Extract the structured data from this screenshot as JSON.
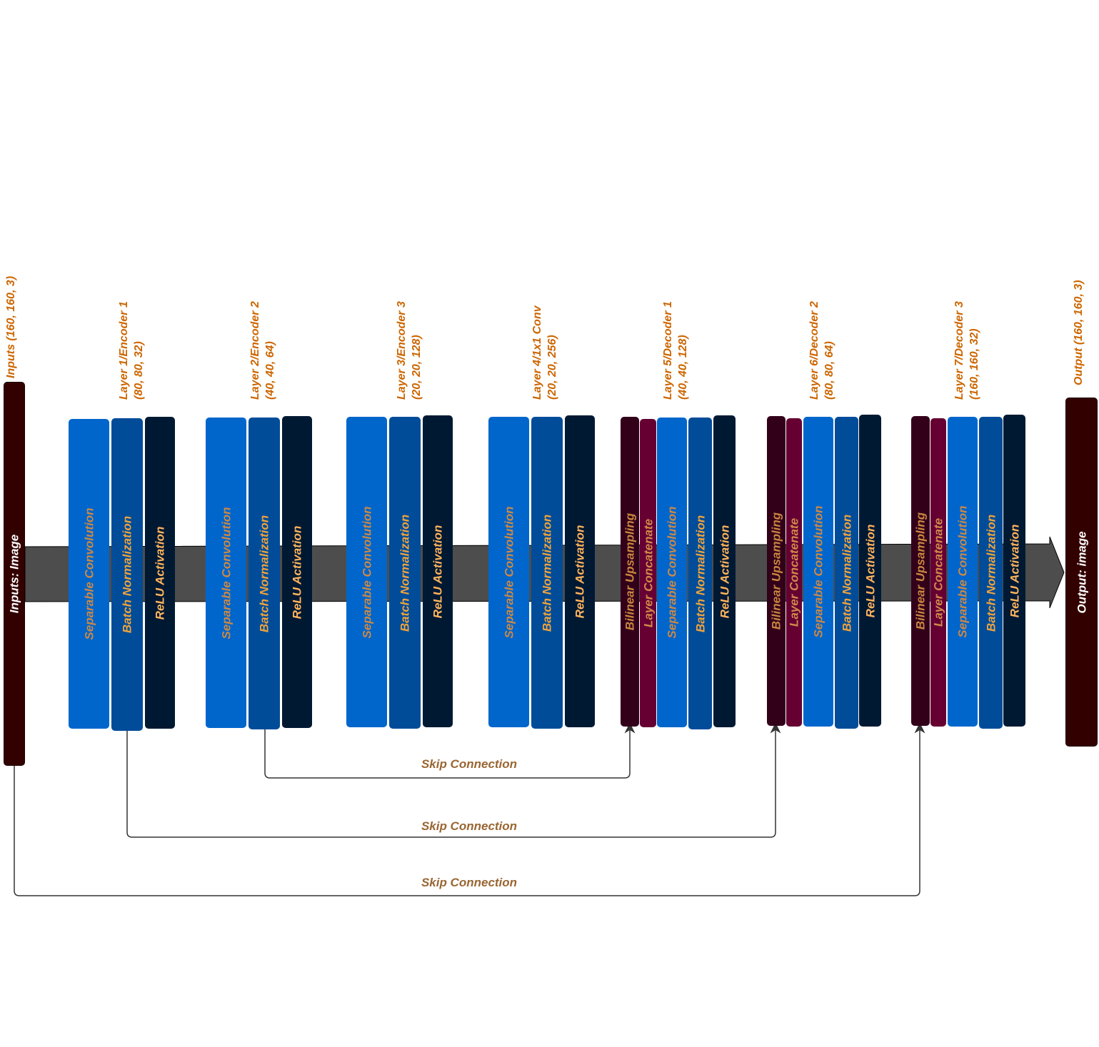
{
  "colors": {
    "sep_conv": "#0066cc",
    "batch_norm": "#004c99",
    "relu": "#001933",
    "upsample": "#33001a",
    "concat": "#660033",
    "io_block": "#330000",
    "arrow": "#4d4d4d",
    "header_text": "#cc6600",
    "skip_text": "#996633",
    "label_sep": "#cc8844",
    "label_bn": "#f0a33a",
    "label_relu": "#ffb35c",
    "label_up": "#c9863f",
    "label_cat": "#d08a4a",
    "io_text": "#ffffff"
  },
  "input": {
    "header": "Inputs (160, 160, 3)",
    "label": "Inputs: Image"
  },
  "output": {
    "header": "Output (160, 160, 3)",
    "label": "Output: image"
  },
  "layers": [
    {
      "id": "enc1",
      "title": "Layer 1/Encoder 1",
      "shape": "(80, 80, 32)",
      "blocks": [
        {
          "type": "sep_conv",
          "label": "Separable Convolution"
        },
        {
          "type": "batch_norm",
          "label": "Batch Normalization"
        },
        {
          "type": "relu",
          "label": "ReLU Activation"
        }
      ]
    },
    {
      "id": "enc2",
      "title": "Layer 2/Encoder 2",
      "shape": "(40, 40, 64)",
      "blocks": [
        {
          "type": "sep_conv",
          "label": "Separable Convolution"
        },
        {
          "type": "batch_norm",
          "label": "Batch Normalization"
        },
        {
          "type": "relu",
          "label": "ReLU Activation"
        }
      ]
    },
    {
      "id": "enc3",
      "title": "Layer 3/Encoder 3",
      "shape": "(20, 20, 128)",
      "blocks": [
        {
          "type": "sep_conv",
          "label": "Separable Convolution"
        },
        {
          "type": "batch_norm",
          "label": "Batch Normalization"
        },
        {
          "type": "relu",
          "label": "ReLU Activation"
        }
      ]
    },
    {
      "id": "conv1x1",
      "title": "Layer 4/1x1 Conv",
      "shape": "(20, 20, 256)",
      "blocks": [
        {
          "type": "sep_conv",
          "label": "Separable Convolution"
        },
        {
          "type": "batch_norm",
          "label": "Batch Normalization"
        },
        {
          "type": "relu",
          "label": "ReLU Activation"
        }
      ]
    },
    {
      "id": "dec1",
      "title": "Layer 5/Decoder 1",
      "shape": "(40, 40, 128)",
      "blocks": [
        {
          "type": "upsample",
          "label": "Bilinear Upsampling"
        },
        {
          "type": "concat",
          "label": "Layer Concatenate"
        },
        {
          "type": "sep_conv",
          "label": "Separable Convolution"
        },
        {
          "type": "batch_norm",
          "label": "Batch Normalization"
        },
        {
          "type": "relu",
          "label": "ReLU Activation"
        }
      ]
    },
    {
      "id": "dec2",
      "title": "Layer 6/Decoder 2",
      "shape": "(80, 80, 64)",
      "blocks": [
        {
          "type": "upsample",
          "label": "Bilinear Upsampling"
        },
        {
          "type": "concat",
          "label": "Layer Concatenate"
        },
        {
          "type": "sep_conv",
          "label": "Separable Convolution"
        },
        {
          "type": "batch_norm",
          "label": "Batch Normalization"
        },
        {
          "type": "relu",
          "label": "ReLU Activation"
        }
      ]
    },
    {
      "id": "dec3",
      "title": "Layer 7/Decoder 3",
      "shape": "(160, 160, 32)",
      "blocks": [
        {
          "type": "upsample",
          "label": "Bilinear Upsampling"
        },
        {
          "type": "concat",
          "label": "Layer Concatenate"
        },
        {
          "type": "sep_conv",
          "label": "Separable Convolution"
        },
        {
          "type": "batch_norm",
          "label": "Batch Normalization"
        },
        {
          "type": "relu",
          "label": "ReLU Activation"
        }
      ]
    }
  ],
  "skip_connections": [
    {
      "label": "Skip Connection",
      "from": "enc2",
      "to": "dec1"
    },
    {
      "label": "Skip Connection",
      "from": "enc1",
      "to": "dec2"
    },
    {
      "label": "Skip Connection",
      "from": "input",
      "to": "dec3"
    }
  ]
}
